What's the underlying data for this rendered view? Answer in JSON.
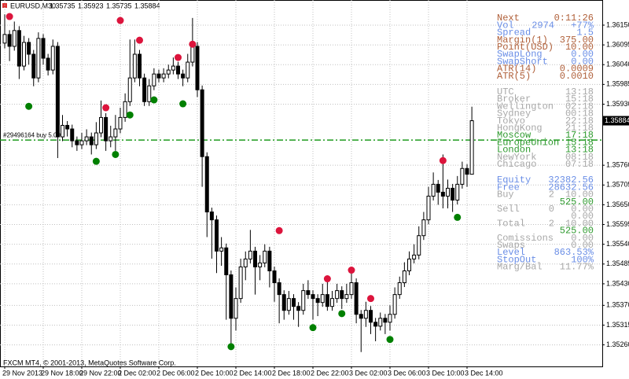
{
  "chart_data": {
    "type": "candlestick",
    "symbol": "EURUSD,M30",
    "footer": "FXCM MT4, © 2001-2013, MetaQuotes Software Corp.",
    "categories": [
      "29 Nov 2013",
      null,
      null,
      null,
      null,
      null,
      null,
      null,
      "29 Nov 18:00",
      null,
      null,
      null,
      null,
      null,
      null,
      null,
      "29 Nov 22:00",
      null,
      null,
      null,
      null,
      null,
      null,
      null,
      "2 Dec 02:00",
      null,
      null,
      null,
      null,
      null,
      null,
      null,
      "2 Dec 06:00",
      null,
      null,
      null,
      null,
      null,
      null,
      null,
      "2 Dec 10:00",
      null,
      null,
      null,
      null,
      null,
      null,
      null,
      "2 Dec 14:00",
      null,
      null,
      null,
      null,
      null,
      null,
      null,
      "2 Dec 18:00",
      null,
      null,
      null,
      null,
      null,
      null,
      null,
      "2 Dec 22:00",
      null,
      null,
      null,
      null,
      null,
      null,
      null,
      "3 Dec 02:00",
      null,
      null,
      null,
      null,
      null,
      null,
      null,
      "3 Dec 06:00",
      null,
      null,
      null,
      null,
      null,
      null,
      null,
      "3 Dec 10:00",
      null,
      null,
      null,
      null,
      null,
      null,
      null,
      "3 Dec 14:00",
      null
    ],
    "ohlc": [
      [
        1.361,
        1.3618,
        1.36085,
        1.36124
      ],
      [
        1.36124,
        1.36136,
        1.3605,
        1.36091
      ],
      [
        1.36091,
        1.3616,
        1.36079,
        1.36135
      ],
      [
        1.36135,
        1.36147,
        1.36,
        1.36036
      ],
      [
        1.36036,
        1.3612,
        1.36024,
        1.36102
      ],
      [
        1.36102,
        1.36114,
        1.3604,
        1.36069
      ],
      [
        1.36069,
        1.36081,
        1.3598,
        1.36003
      ],
      [
        1.36003,
        1.3613,
        1.35991,
        1.36113
      ],
      [
        1.36113,
        1.36125,
        1.3604,
        1.36058
      ],
      [
        1.36058,
        1.3607,
        1.3601,
        1.36025
      ],
      [
        1.36025,
        1.3611,
        1.36013,
        1.36091
      ],
      [
        1.36091,
        1.36103,
        1.3578,
        1.35839
      ],
      [
        1.35839,
        1.359,
        1.35827,
        1.35871
      ],
      [
        1.35871,
        1.35883,
        1.3584,
        1.35861
      ],
      [
        1.35861,
        1.35873,
        1.3581,
        1.35828
      ],
      [
        1.35828,
        1.3584,
        1.358,
        1.35817
      ],
      [
        1.35817,
        1.3585,
        1.35805,
        1.35828
      ],
      [
        1.35828,
        1.3586,
        1.35816,
        1.35839
      ],
      [
        1.35839,
        1.35851,
        1.3579,
        1.35817
      ],
      [
        1.35817,
        1.3588,
        1.35805,
        1.3585
      ],
      [
        1.3585,
        1.3594,
        1.35838,
        1.35893
      ],
      [
        1.35893,
        1.35905,
        1.358,
        1.35828
      ],
      [
        1.35828,
        1.3587,
        1.3581,
        1.35839
      ],
      [
        1.35839,
        1.359,
        1.358,
        1.35861
      ],
      [
        1.35861,
        1.3592,
        1.35849,
        1.35893
      ],
      [
        1.35893,
        1.3596,
        1.35881,
        1.35937
      ],
      [
        1.35937,
        1.3611,
        1.35925,
        1.36003
      ],
      [
        1.36003,
        1.3611,
        1.35991,
        1.36069
      ],
      [
        1.36069,
        1.36081,
        1.3598,
        1.36003
      ],
      [
        1.36003,
        1.36015,
        1.35925,
        1.35937
      ],
      [
        1.35937,
        1.36,
        1.35925,
        1.35981
      ],
      [
        1.35981,
        1.3603,
        1.35969,
        1.36014
      ],
      [
        1.36014,
        1.36026,
        1.35991,
        1.36003
      ],
      [
        1.36003,
        1.3603,
        1.35991,
        1.36014
      ],
      [
        1.36014,
        1.3604,
        1.36002,
        1.36025
      ],
      [
        1.36025,
        1.3606,
        1.36013,
        1.36036
      ],
      [
        1.36036,
        1.36048,
        1.36,
        1.36014
      ],
      [
        1.36014,
        1.36026,
        1.3598,
        1.36003
      ],
      [
        1.36003,
        1.3607,
        1.35991,
        1.36047
      ],
      [
        1.36047,
        1.3617,
        1.36035,
        1.36091
      ],
      [
        1.36091,
        1.36103,
        1.3595,
        1.3597
      ],
      [
        1.3597,
        1.35982,
        1.357,
        1.35784
      ],
      [
        1.35784,
        1.35796,
        1.3556,
        1.3563
      ],
      [
        1.3563,
        1.35642,
        1.355,
        1.35608
      ],
      [
        1.35608,
        1.3562,
        1.3546,
        1.35521
      ],
      [
        1.35521,
        1.3556,
        1.3548,
        1.3553
      ],
      [
        1.3553,
        1.35542,
        1.3533,
        1.35455
      ],
      [
        1.35455,
        1.35467,
        1.3525,
        1.35334
      ],
      [
        1.35334,
        1.3542,
        1.353,
        1.35389
      ],
      [
        1.35389,
        1.355,
        1.35377,
        1.35477
      ],
      [
        1.35477,
        1.3552,
        1.3544,
        1.35499
      ],
      [
        1.35499,
        1.3558,
        1.35487,
        1.35521
      ],
      [
        1.35521,
        1.35533,
        1.354,
        1.35477
      ],
      [
        1.35477,
        1.3551,
        1.3544,
        1.35488
      ],
      [
        1.35488,
        1.3554,
        1.35476,
        1.35521
      ],
      [
        1.35521,
        1.35533,
        1.3542,
        1.35466
      ],
      [
        1.35466,
        1.35478,
        1.3538,
        1.35433
      ],
      [
        1.35433,
        1.35445,
        1.3532,
        1.354
      ],
      [
        1.354,
        1.35412,
        1.3533,
        1.35356
      ],
      [
        1.35356,
        1.3541,
        1.35344,
        1.35389
      ],
      [
        1.35389,
        1.35401,
        1.3533,
        1.35367
      ],
      [
        1.35367,
        1.35379,
        1.3531,
        1.35356
      ],
      [
        1.35356,
        1.3543,
        1.35344,
        1.35411
      ],
      [
        1.35411,
        1.3544,
        1.35388,
        1.354
      ],
      [
        1.354,
        1.35412,
        1.3533,
        1.35389
      ],
      [
        1.35389,
        1.35401,
        1.3534,
        1.35378
      ],
      [
        1.35378,
        1.3543,
        1.35366,
        1.354
      ],
      [
        1.354,
        1.3544,
        1.35355,
        1.35367
      ],
      [
        1.35367,
        1.3541,
        1.35355,
        1.35389
      ],
      [
        1.35389,
        1.3543,
        1.35377,
        1.35411
      ],
      [
        1.35411,
        1.35423,
        1.3536,
        1.35389
      ],
      [
        1.35389,
        1.3543,
        1.35377,
        1.354
      ],
      [
        1.354,
        1.3547,
        1.35388,
        1.35433
      ],
      [
        1.35433,
        1.35445,
        1.3532,
        1.35345
      ],
      [
        1.35345,
        1.35357,
        1.3524,
        1.35334
      ],
      [
        1.35334,
        1.3538,
        1.3531,
        1.35356
      ],
      [
        1.35356,
        1.35368,
        1.3529,
        1.35323
      ],
      [
        1.35323,
        1.35335,
        1.3527,
        1.35312
      ],
      [
        1.35312,
        1.3535,
        1.353,
        1.35334
      ],
      [
        1.35334,
        1.35346,
        1.3529,
        1.35323
      ],
      [
        1.35323,
        1.3537,
        1.353,
        1.35345
      ],
      [
        1.35345,
        1.3542,
        1.35333,
        1.354
      ],
      [
        1.354,
        1.3545,
        1.35388,
        1.35433
      ],
      [
        1.35433,
        1.3549,
        1.35421,
        1.35466
      ],
      [
        1.35466,
        1.3552,
        1.35454,
        1.35499
      ],
      [
        1.35499,
        1.3554,
        1.35487,
        1.3551
      ],
      [
        1.3551,
        1.3559,
        1.35498,
        1.35564
      ],
      [
        1.35564,
        1.3563,
        1.35552,
        1.35608
      ],
      [
        1.35608,
        1.357,
        1.35596,
        1.35674
      ],
      [
        1.35674,
        1.3574,
        1.35662,
        1.35707
      ],
      [
        1.35707,
        1.35719,
        1.3565,
        1.35685
      ],
      [
        1.35685,
        1.3579,
        1.3564,
        1.35674
      ],
      [
        1.35674,
        1.3572,
        1.3564,
        1.35696
      ],
      [
        1.35696,
        1.35708,
        1.3563,
        1.35663
      ],
      [
        1.35663,
        1.3573,
        1.35651,
        1.35707
      ],
      [
        1.35707,
        1.3577,
        1.35695,
        1.35751
      ],
      [
        1.35751,
        1.35763,
        1.357,
        1.35735
      ],
      [
        1.35735,
        1.35923,
        1.35735,
        1.35884
      ]
    ],
    "bull_color": "#ffffff",
    "bear_color": "#000000",
    "fractals_up": [
      null,
      1.36174,
      null,
      null,
      null,
      null,
      null,
      null,
      null,
      null,
      null,
      null,
      null,
      null,
      null,
      null,
      null,
      null,
      null,
      null,
      null,
      1.3592,
      null,
      null,
      1.36163,
      null,
      null,
      null,
      1.36108,
      null,
      null,
      null,
      null,
      null,
      null,
      null,
      1.3606,
      null,
      null,
      1.36097,
      null,
      null,
      null,
      null,
      null,
      null,
      null,
      null,
      null,
      null,
      null,
      null,
      null,
      null,
      null,
      null,
      null,
      1.35578,
      null,
      null,
      null,
      null,
      null,
      null,
      null,
      null,
      null,
      1.35444,
      null,
      null,
      null,
      null,
      1.35468,
      null,
      null,
      null,
      1.35389,
      null,
      null,
      null,
      null,
      null,
      null,
      null,
      null,
      null,
      null,
      null,
      null,
      null,
      null,
      1.35773,
      null,
      null,
      null,
      null,
      null,
      null
    ],
    "fractals_down": [
      null,
      null,
      null,
      null,
      null,
      1.35924,
      null,
      null,
      null,
      null,
      null,
      null,
      null,
      null,
      null,
      null,
      null,
      null,
      null,
      1.35771,
      null,
      null,
      null,
      1.3579,
      null,
      null,
      1.359,
      null,
      null,
      null,
      null,
      1.35942,
      null,
      null,
      null,
      null,
      null,
      1.35931,
      null,
      null,
      null,
      null,
      null,
      null,
      null,
      null,
      null,
      1.35255,
      null,
      null,
      null,
      null,
      null,
      null,
      null,
      null,
      null,
      null,
      null,
      null,
      null,
      null,
      null,
      null,
      1.35308,
      null,
      null,
      null,
      null,
      null,
      1.35347,
      null,
      null,
      null,
      null,
      null,
      null,
      null,
      null,
      null,
      1.35275,
      null,
      null,
      null,
      null,
      null,
      null,
      null,
      null,
      null,
      null,
      null,
      null,
      null,
      1.35615,
      null,
      null,
      null
    ],
    "up_color": "#dc143c",
    "down_color": "#008000",
    "order": {
      "label": "#29496164 buy 5.00",
      "price": 1.3583,
      "color": "#1e9b1e"
    },
    "ylim": [
      1.352,
      1.3622
    ],
    "yticks": [
      {
        "value": 1.3615,
        "label": "1.36150"
      },
      1.36095,
      {
        "value": 1.3604,
        "label": "1.36040"
      },
      1.35985,
      {
        "value": 1.3593,
        "label": "1.35930"
      },
      {
        "value": 1.3576,
        "label": "1.35760"
      },
      1.35705,
      {
        "value": 1.3565,
        "label": "1.35650"
      },
      1.35595,
      {
        "value": 1.3554,
        "label": "1.35540"
      },
      1.35485,
      {
        "value": 1.3543,
        "label": "1.35430"
      },
      {
        "value": 1.3537,
        "label": "1.35370"
      },
      1.35315,
      {
        "value": 1.3526,
        "label": "1.35260"
      }
    ],
    "grid": true
  },
  "panel": {
    "groups": [
      [
        {
          "cells": [
            "Next",
            "0:11:26"
          ],
          "color": "#b0603a"
        },
        {
          "cells": [
            "Vol",
            "2974",
            "+77%"
          ],
          "color": "#6a8ee6"
        },
        {
          "cells": [
            "Spread",
            "1.5"
          ],
          "color": "#6a8ee6"
        },
        {
          "cells": [
            "Margin(1)",
            "375.00"
          ],
          "color": "#b0603a"
        },
        {
          "cells": [
            "Point(USD)",
            "10.00"
          ],
          "color": "#b0603a"
        },
        {
          "cells": [
            "SwapLong",
            "0.00"
          ],
          "color": "#6a8ee6"
        },
        {
          "cells": [
            "SwapShort",
            "0.00"
          ],
          "color": "#6a8ee6"
        },
        {
          "cells": [
            "ATR(14)",
            "0.0009"
          ],
          "color": "#b0603a"
        },
        {
          "cells": [
            "ATR(5)",
            "0.0010"
          ],
          "color": "#b0603a"
        }
      ],
      [
        {
          "cells": [
            "UTC",
            "13:18"
          ],
          "color": "#a8a8a8"
        },
        {
          "cells": [
            "Broker",
            "15:18"
          ],
          "color": "#a8a8a8"
        },
        {
          "cells": [
            "Wellington",
            "02:18"
          ],
          "color": "#a8a8a8"
        },
        {
          "cells": [
            "Sydney",
            "00:18"
          ],
          "color": "#a8a8a8"
        },
        {
          "cells": [
            "Tokyo",
            "22:18"
          ],
          "color": "#a8a8a8"
        },
        {
          "cells": [
            "HongKong",
            "21:18"
          ],
          "color": "#a8a8a8"
        },
        {
          "cells": [
            "Moscow",
            "17:18"
          ],
          "color": "#2e9a2e"
        },
        {
          "cells": [
            "EuropeUnion",
            "15:18"
          ],
          "color": "#2e9a2e"
        },
        {
          "cells": [
            "London",
            "13:18"
          ],
          "color": "#2e9a2e"
        },
        {
          "cells": [
            "NewYork",
            "08:18"
          ],
          "color": "#a8a8a8"
        },
        {
          "cells": [
            "Chicago",
            "07:18"
          ],
          "color": "#a8a8a8"
        }
      ],
      [
        {
          "cells": [
            "Equity",
            "32382.56"
          ],
          "color": "#6a8ee6"
        },
        {
          "cells": [
            "Free",
            "28632.56"
          ],
          "color": "#6a8ee6"
        },
        {
          "cells": [
            "Buy",
            "2",
            "10.00"
          ],
          "color": "#a8a8a8"
        },
        {
          "cells": [
            "525.00"
          ],
          "color": "#2e9a2e"
        },
        {
          "cells": [
            "Sell",
            "0",
            "0.00"
          ],
          "color": "#a8a8a8"
        },
        {
          "cells": [
            "0.00"
          ],
          "color": "#a8a8a8"
        },
        {
          "cells": [
            "Total",
            "2",
            "10.00"
          ],
          "color": "#a8a8a8"
        },
        {
          "cells": [
            "525.00"
          ],
          "color": "#2e9a2e"
        },
        {
          "cells": [
            "Comissions",
            "0.00"
          ],
          "color": "#a8a8a8"
        },
        {
          "cells": [
            "Swaps",
            "0.00"
          ],
          "color": "#a8a8a8"
        },
        {
          "cells": [
            "Level",
            "863.53%"
          ],
          "color": "#6a8ee6"
        },
        {
          "cells": [
            "StopOut",
            "100%"
          ],
          "color": "#6a8ee6"
        },
        {
          "cells": [
            "Marg/Bal",
            "11.77%"
          ],
          "color": "#a8a8a8"
        }
      ]
    ]
  }
}
